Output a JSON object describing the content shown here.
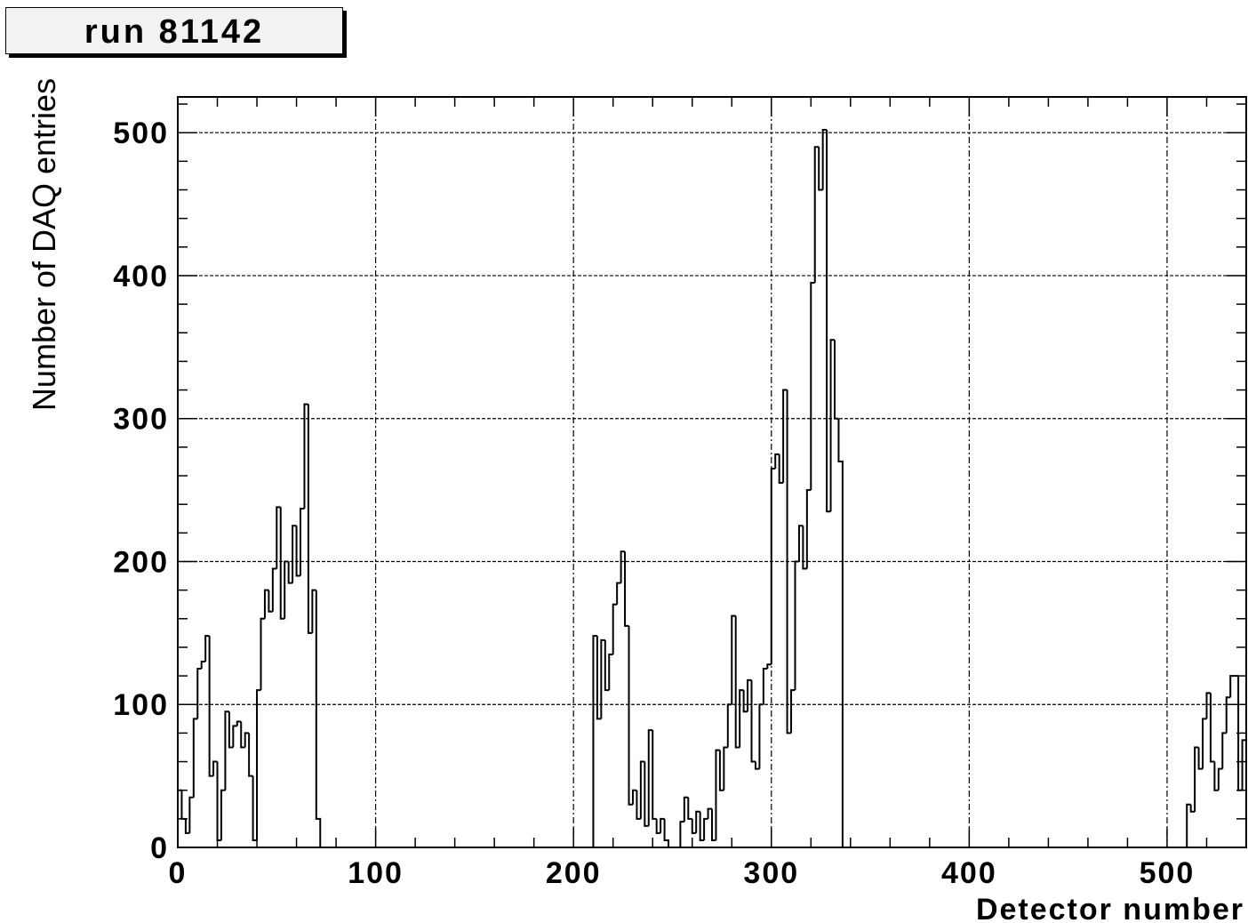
{
  "title": "run 81142",
  "chart_data": {
    "type": "histogram",
    "title": "run 81142",
    "xlabel": "Detector number",
    "ylabel": "Number of DAQ entries",
    "xlim": [
      0,
      540
    ],
    "ylim": [
      0,
      525
    ],
    "xticks": [
      0,
      100,
      200,
      300,
      400,
      500
    ],
    "yticks": [
      0,
      100,
      200,
      300,
      400,
      500
    ],
    "grid": true,
    "line_color": "#000000",
    "bin_width": 2,
    "bins": [
      {
        "x": 0,
        "y": 40
      },
      {
        "x": 2,
        "y": 20
      },
      {
        "x": 4,
        "y": 10
      },
      {
        "x": 6,
        "y": 35
      },
      {
        "x": 8,
        "y": 90
      },
      {
        "x": 10,
        "y": 125
      },
      {
        "x": 12,
        "y": 130
      },
      {
        "x": 14,
        "y": 148
      },
      {
        "x": 16,
        "y": 50
      },
      {
        "x": 18,
        "y": 60
      },
      {
        "x": 20,
        "y": 5
      },
      {
        "x": 22,
        "y": 40
      },
      {
        "x": 24,
        "y": 95
      },
      {
        "x": 26,
        "y": 70
      },
      {
        "x": 28,
        "y": 85
      },
      {
        "x": 30,
        "y": 88
      },
      {
        "x": 32,
        "y": 70
      },
      {
        "x": 34,
        "y": 80
      },
      {
        "x": 36,
        "y": 50
      },
      {
        "x": 38,
        "y": 5
      },
      {
        "x": 40,
        "y": 110
      },
      {
        "x": 42,
        "y": 160
      },
      {
        "x": 44,
        "y": 180
      },
      {
        "x": 46,
        "y": 165
      },
      {
        "x": 48,
        "y": 195
      },
      {
        "x": 50,
        "y": 238
      },
      {
        "x": 52,
        "y": 160
      },
      {
        "x": 54,
        "y": 200
      },
      {
        "x": 56,
        "y": 185
      },
      {
        "x": 58,
        "y": 225
      },
      {
        "x": 60,
        "y": 190
      },
      {
        "x": 62,
        "y": 237
      },
      {
        "x": 64,
        "y": 310
      },
      {
        "x": 66,
        "y": 150
      },
      {
        "x": 68,
        "y": 180
      },
      {
        "x": 70,
        "y": 20
      },
      {
        "x": 210,
        "y": 148
      },
      {
        "x": 212,
        "y": 90
      },
      {
        "x": 214,
        "y": 145
      },
      {
        "x": 216,
        "y": 110
      },
      {
        "x": 218,
        "y": 135
      },
      {
        "x": 220,
        "y": 170
      },
      {
        "x": 222,
        "y": 185
      },
      {
        "x": 224,
        "y": 207
      },
      {
        "x": 226,
        "y": 155
      },
      {
        "x": 228,
        "y": 30
      },
      {
        "x": 230,
        "y": 40
      },
      {
        "x": 232,
        "y": 20
      },
      {
        "x": 234,
        "y": 60
      },
      {
        "x": 236,
        "y": 15
      },
      {
        "x": 238,
        "y": 82
      },
      {
        "x": 240,
        "y": 20
      },
      {
        "x": 242,
        "y": 10
      },
      {
        "x": 244,
        "y": 20
      },
      {
        "x": 246,
        "y": 5
      },
      {
        "x": 254,
        "y": 18
      },
      {
        "x": 256,
        "y": 35
      },
      {
        "x": 258,
        "y": 20
      },
      {
        "x": 260,
        "y": 10
      },
      {
        "x": 262,
        "y": 25
      },
      {
        "x": 264,
        "y": 5
      },
      {
        "x": 266,
        "y": 20
      },
      {
        "x": 268,
        "y": 27
      },
      {
        "x": 270,
        "y": 5
      },
      {
        "x": 272,
        "y": 68
      },
      {
        "x": 274,
        "y": 40
      },
      {
        "x": 276,
        "y": 70
      },
      {
        "x": 278,
        "y": 100
      },
      {
        "x": 280,
        "y": 162
      },
      {
        "x": 282,
        "y": 70
      },
      {
        "x": 284,
        "y": 110
      },
      {
        "x": 286,
        "y": 95
      },
      {
        "x": 288,
        "y": 117
      },
      {
        "x": 290,
        "y": 60
      },
      {
        "x": 292,
        "y": 55
      },
      {
        "x": 294,
        "y": 100
      },
      {
        "x": 296,
        "y": 125
      },
      {
        "x": 298,
        "y": 128
      },
      {
        "x": 300,
        "y": 265
      },
      {
        "x": 302,
        "y": 275
      },
      {
        "x": 304,
        "y": 255
      },
      {
        "x": 306,
        "y": 320
      },
      {
        "x": 308,
        "y": 80
      },
      {
        "x": 310,
        "y": 110
      },
      {
        "x": 312,
        "y": 200
      },
      {
        "x": 314,
        "y": 225
      },
      {
        "x": 316,
        "y": 195
      },
      {
        "x": 318,
        "y": 250
      },
      {
        "x": 320,
        "y": 395
      },
      {
        "x": 322,
        "y": 490
      },
      {
        "x": 324,
        "y": 460
      },
      {
        "x": 326,
        "y": 502
      },
      {
        "x": 328,
        "y": 235
      },
      {
        "x": 330,
        "y": 355
      },
      {
        "x": 332,
        "y": 300
      },
      {
        "x": 334,
        "y": 270
      },
      {
        "x": 510,
        "y": 30
      },
      {
        "x": 512,
        "y": 25
      },
      {
        "x": 514,
        "y": 70
      },
      {
        "x": 516,
        "y": 55
      },
      {
        "x": 518,
        "y": 90
      },
      {
        "x": 520,
        "y": 108
      },
      {
        "x": 522,
        "y": 60
      },
      {
        "x": 524,
        "y": 40
      },
      {
        "x": 526,
        "y": 55
      },
      {
        "x": 528,
        "y": 80
      },
      {
        "x": 530,
        "y": 105
      },
      {
        "x": 532,
        "y": 120
      },
      {
        "x": 534,
        "y": 120
      },
      {
        "x": 536,
        "y": 40
      },
      {
        "x": 538,
        "y": 75
      }
    ]
  }
}
